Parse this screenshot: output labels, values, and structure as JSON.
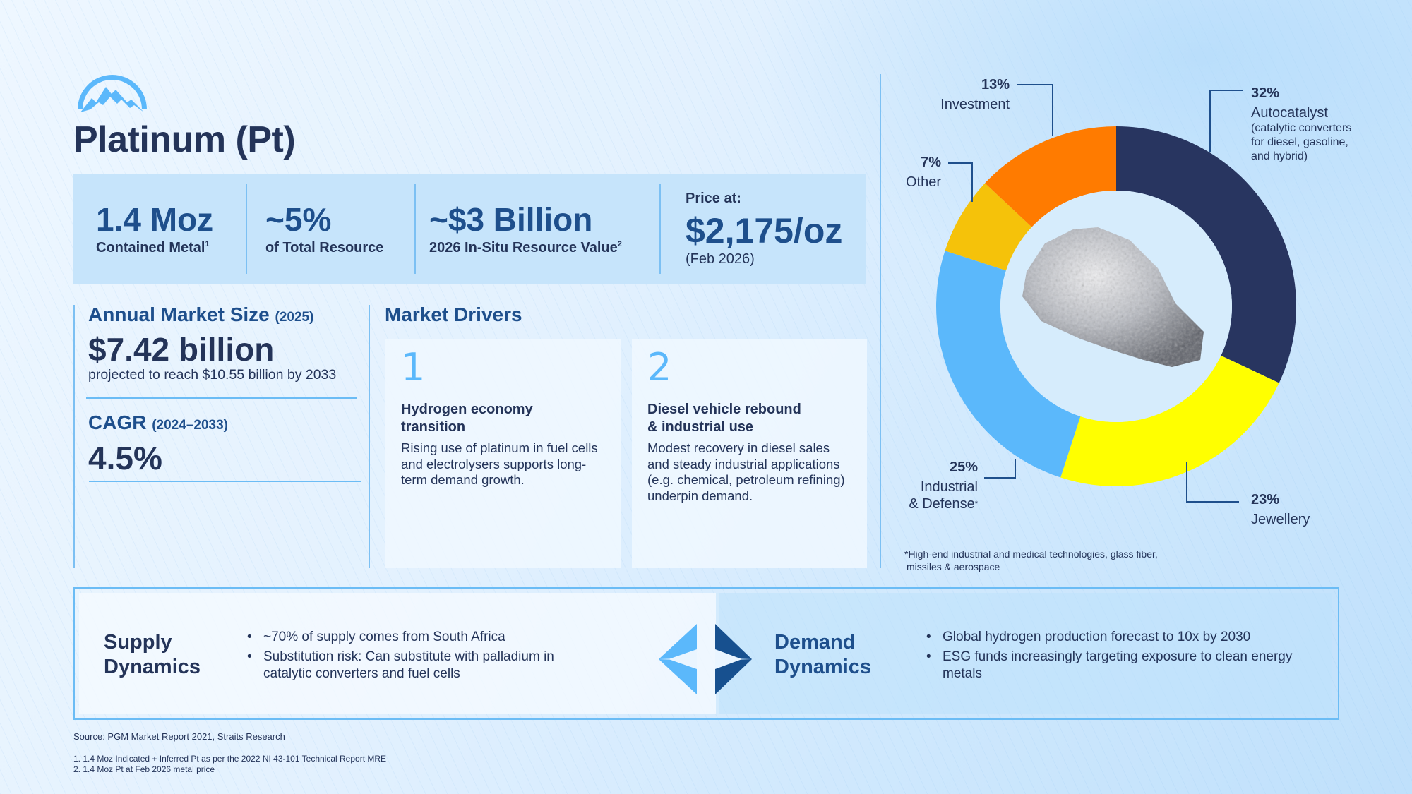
{
  "title": "Platinum (Pt)",
  "stats": [
    {
      "value": "1.4 Moz",
      "label": "Contained Metal",
      "sup": "1"
    },
    {
      "value": "~5%",
      "label": "of Total Resource",
      "sup": ""
    },
    {
      "value": "~$3 Billion",
      "label": "2026 In-Situ Resource Value",
      "sup": "2"
    }
  ],
  "price": {
    "label": "Price at:",
    "value": "$2,175/oz",
    "date": "(Feb 2026)"
  },
  "market": {
    "title": "Annual Market Size",
    "year": "(2025)",
    "value": "$7.42 billion",
    "projection": "projected to reach $10.55 billion by 2033",
    "cagr_title": "CAGR",
    "cagr_years": "(2024–2033)",
    "cagr_value": "4.5%"
  },
  "drivers": {
    "title": "Market Drivers",
    "items": [
      {
        "num": "1",
        "heading_1": "Hydrogen economy",
        "heading_2": "transition",
        "body": "Rising use of platinum in fuel cells and electrolysers supports long-term demand growth."
      },
      {
        "num": "2",
        "heading_1": "Diesel vehicle rebound",
        "heading_2": "& industrial use",
        "body": "Modest recovery in diesel sales and steady industrial applications (e.g. chemical, petroleum refining) underpin demand."
      }
    ]
  },
  "chart_data": {
    "type": "pie",
    "donut": true,
    "start": "top, clockwise",
    "slices": [
      {
        "label": "Autocatalyst",
        "value": 32,
        "pct": "32%",
        "note_lines": [
          "(catalytic converters",
          "for diesel, gasoline,",
          "and hybrid)"
        ],
        "color": "#283560"
      },
      {
        "label": "Jewellery",
        "value": 23,
        "pct": "23%",
        "color": "#ffff00"
      },
      {
        "label": "Industrial",
        "label2": "& Defense",
        "value": 25,
        "pct": "25%",
        "color": "#5bb8fb"
      },
      {
        "label": "Other",
        "value": 7,
        "pct": "7%",
        "color": "#f5c20a"
      },
      {
        "label": "Investment",
        "value": 13,
        "pct": "13%",
        "color": "#ff7b00"
      }
    ],
    "footnote_1": "*High-end industrial and medical technologies, glass fiber,",
    "footnote_2": "missiles & aerospace"
  },
  "supply": {
    "title_1": "Supply",
    "title_2": "Dynamics",
    "bullets": [
      "~70% of supply comes from South Africa",
      "Substitution risk: Can substitute with palladium in catalytic converters and fuel cells"
    ]
  },
  "demand": {
    "title_1": "Demand",
    "title_2": "Dynamics",
    "bullets": [
      "Global hydrogen production forecast to 10x by 2030",
      "ESG funds increasingly targeting exposure to clean energy metals"
    ]
  },
  "source": "Source: PGM Market Report 2021, Straits Research",
  "footnotes": [
    "1.  1.4 Moz Indicated + Inferred Pt as per the 2022 NI 43-101 Technical Report MRE",
    "2.  1.4 Moz Pt at Feb 2026 metal price"
  ],
  "colors": {
    "navy": "#243459",
    "blue": "#1e4f8c",
    "accent": "#5bb8fb"
  }
}
